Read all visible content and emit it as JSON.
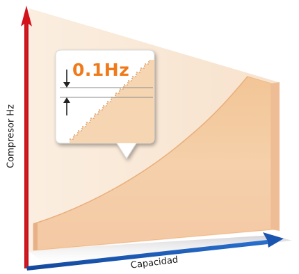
{
  "axes": {
    "y_label": "Compresor Hz",
    "x_label": "Capacidad",
    "y_axis_color": "#e0141e",
    "x_axis_color": "#1d5fb8"
  },
  "callout": {
    "value_label": "0.1Hz",
    "value_color": "#f07a1a"
  },
  "curve": {
    "fill_color": "#f5c89a",
    "panel_color": "#f7e7d3"
  }
}
